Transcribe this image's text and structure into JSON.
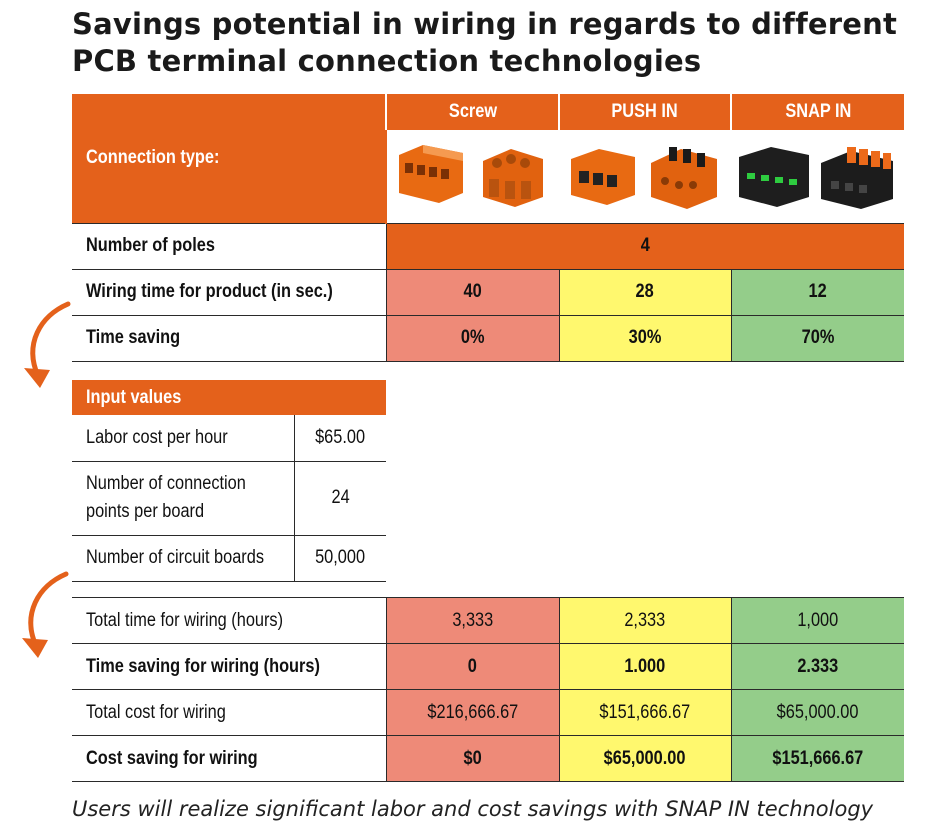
{
  "title_line1": "Savings potential in wiring in regards to different",
  "title_line2": "PCB terminal connection technologies",
  "top_table": {
    "connection_type_label": "Connection type:",
    "columns": [
      "Screw",
      "PUSH IN",
      "SNAP IN"
    ],
    "poles_label": "Number of poles",
    "poles_value": "4",
    "wiring_time_label": "Wiring time for product (in sec.)",
    "wiring_time": [
      "40",
      "28",
      "12"
    ],
    "time_saving_label": "Time saving",
    "time_saving": [
      "0%",
      "30%",
      "70%"
    ]
  },
  "input_table": {
    "header": "Input values",
    "rows": [
      {
        "label": "Labor cost per hour",
        "value": "$65.00"
      },
      {
        "label_line1": "Number of connection",
        "label_line2": "points per board",
        "value": "24"
      },
      {
        "label": "Number of circuit boards",
        "value": "50,000"
      }
    ]
  },
  "results_table": {
    "rows": [
      {
        "label": "Total time for wiring (hours)",
        "values": [
          "3,333",
          "2,333",
          "1,000"
        ],
        "bold": false
      },
      {
        "label": "Time saving for wiring (hours)",
        "values": [
          "0",
          "1.000",
          "2.333"
        ],
        "bold": true
      },
      {
        "label": "Total cost for wiring",
        "values": [
          "$216,666.67",
          "$151,666.67",
          "$65,000.00"
        ],
        "bold": false
      },
      {
        "label": "Cost saving for wiring",
        "values": [
          "$0",
          "$65,000.00",
          "$151,666.67"
        ],
        "bold": true
      }
    ]
  },
  "footer": "Users will realize significant labor and cost savings with SNAP IN technology",
  "colors": {
    "orange": "#e4611b",
    "red": "#ee8a78",
    "yellow": "#fff86e",
    "green": "#94cd8a"
  },
  "icons": [
    "screw-terminal-icon",
    "push-in-terminal-icon",
    "snap-in-terminal-icon",
    "curved-arrow-icon"
  ]
}
